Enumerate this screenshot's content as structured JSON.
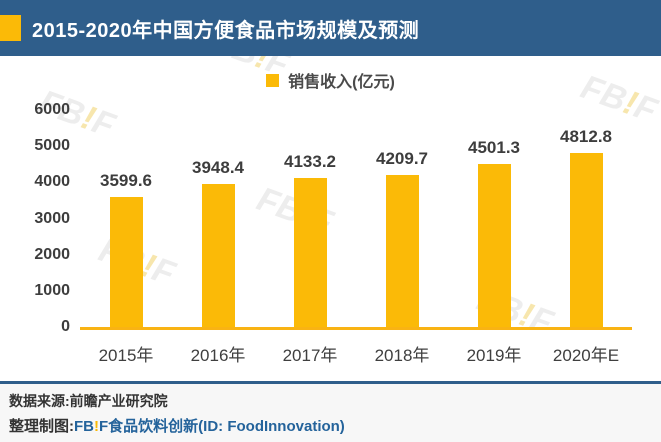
{
  "header": {
    "title": "2015-2020年中国方便食品市场规模及预测"
  },
  "legend": {
    "label": "销售收入(亿元)"
  },
  "chart_data": {
    "type": "bar",
    "title": "2015-2020年中国方便食品市场规模及预测",
    "legend_entries": [
      "销售收入(亿元)"
    ],
    "legend_position": "top",
    "categories": [
      "2015年",
      "2016年",
      "2017年",
      "2018年",
      "2019年",
      "2020年E"
    ],
    "values": [
      3599.6,
      3948.4,
      4133.2,
      4209.7,
      4501.3,
      4812.8
    ],
    "xlabel": "",
    "ylabel": "销售收入(亿元)",
    "ylim": [
      0,
      6000
    ],
    "yticks": [
      0,
      1000,
      2000,
      3000,
      4000,
      5000,
      6000
    ],
    "grid": false,
    "data_labels": true
  },
  "footer": {
    "source": "数据来源:前瞻产业研究院",
    "credit_prefix": "整理制图:",
    "brand": {
      "fb": "FB",
      "excl": "!",
      "f": "F",
      "suffix": "食品饮料创新(ID: FoodInnovation)"
    }
  },
  "watermark": {
    "fb": "FB",
    "excl": "!",
    "f": "F"
  },
  "colors": {
    "header_bg": "#2F5E8B",
    "bar": "#FBBA07",
    "axis_line": "#F9B313",
    "brand_blue": "#24639B",
    "accent_yellow": "#FBBA07",
    "footer_bg": "#F7F7F7"
  }
}
